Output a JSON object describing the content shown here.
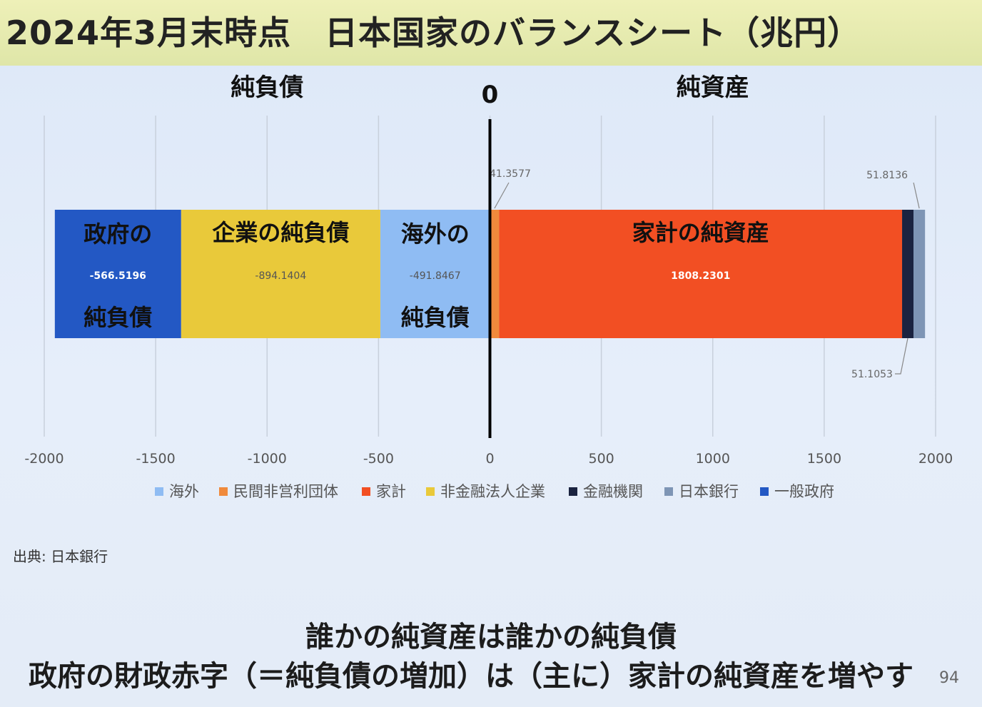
{
  "title": "2024年3月末時点　日本国家のバランスシート（兆円）",
  "chart_data": {
    "type": "bar",
    "orientation": "horizontal-stacked",
    "left_label": "純負債",
    "right_label": "純資産",
    "zero_label": "0",
    "x_ticks": [
      "-2000",
      "-1500",
      "-1000",
      "-500",
      "0",
      "500",
      "1000",
      "1500",
      "2000"
    ],
    "xlim": [
      -2000,
      2000
    ],
    "segments": [
      {
        "name": "一般政府",
        "value": -566.5196,
        "label": "-566.5196",
        "color": "#2358c4",
        "overlay": [
          "政府の",
          "純負債"
        ]
      },
      {
        "name": "非金融法人企業",
        "value": -894.1404,
        "label": "-894.1404",
        "color": "#e9c93a",
        "overlay": [
          "企業の純負債"
        ]
      },
      {
        "name": "海外",
        "value": -491.8467,
        "label": "-491.8467",
        "color": "#8fbcf3",
        "overlay": [
          "海外の",
          "純負債"
        ]
      },
      {
        "name": "民間非営利団体",
        "value": 41.3577,
        "label": "41.3577",
        "color": "#f08a3c",
        "overlay": []
      },
      {
        "name": "家計",
        "value": 1808.2301,
        "label": "1808.2301",
        "color": "#f24f23",
        "overlay": [
          "家計の純資産"
        ]
      },
      {
        "name": "金融機関",
        "value": 51.1053,
        "label": "51.1053",
        "color": "#1a2340",
        "overlay": []
      },
      {
        "name": "日本銀行",
        "value": 51.8136,
        "label": "51.8136",
        "color": "#7e95b5",
        "overlay": []
      }
    ],
    "legend": [
      {
        "name": "海外",
        "color": "#8fbcf3"
      },
      {
        "name": "民間非営利団体",
        "color": "#f08a3c"
      },
      {
        "name": "家計",
        "color": "#f24f23"
      },
      {
        "name": "非金融法人企業",
        "color": "#e9c93a"
      },
      {
        "name": "金融機関",
        "color": "#1a2340"
      },
      {
        "name": "日本銀行",
        "color": "#7e95b5"
      },
      {
        "name": "一般政府",
        "color": "#2358c4"
      }
    ],
    "legend_position": "bottom",
    "grid": true
  },
  "source": "出典: 日本銀行",
  "caption": {
    "line1": "誰かの純資産は誰かの純負債",
    "line2": "政府の財政赤字（＝純負債の増加）は（主に）家計の純資産を増やす"
  },
  "page_number": "94"
}
